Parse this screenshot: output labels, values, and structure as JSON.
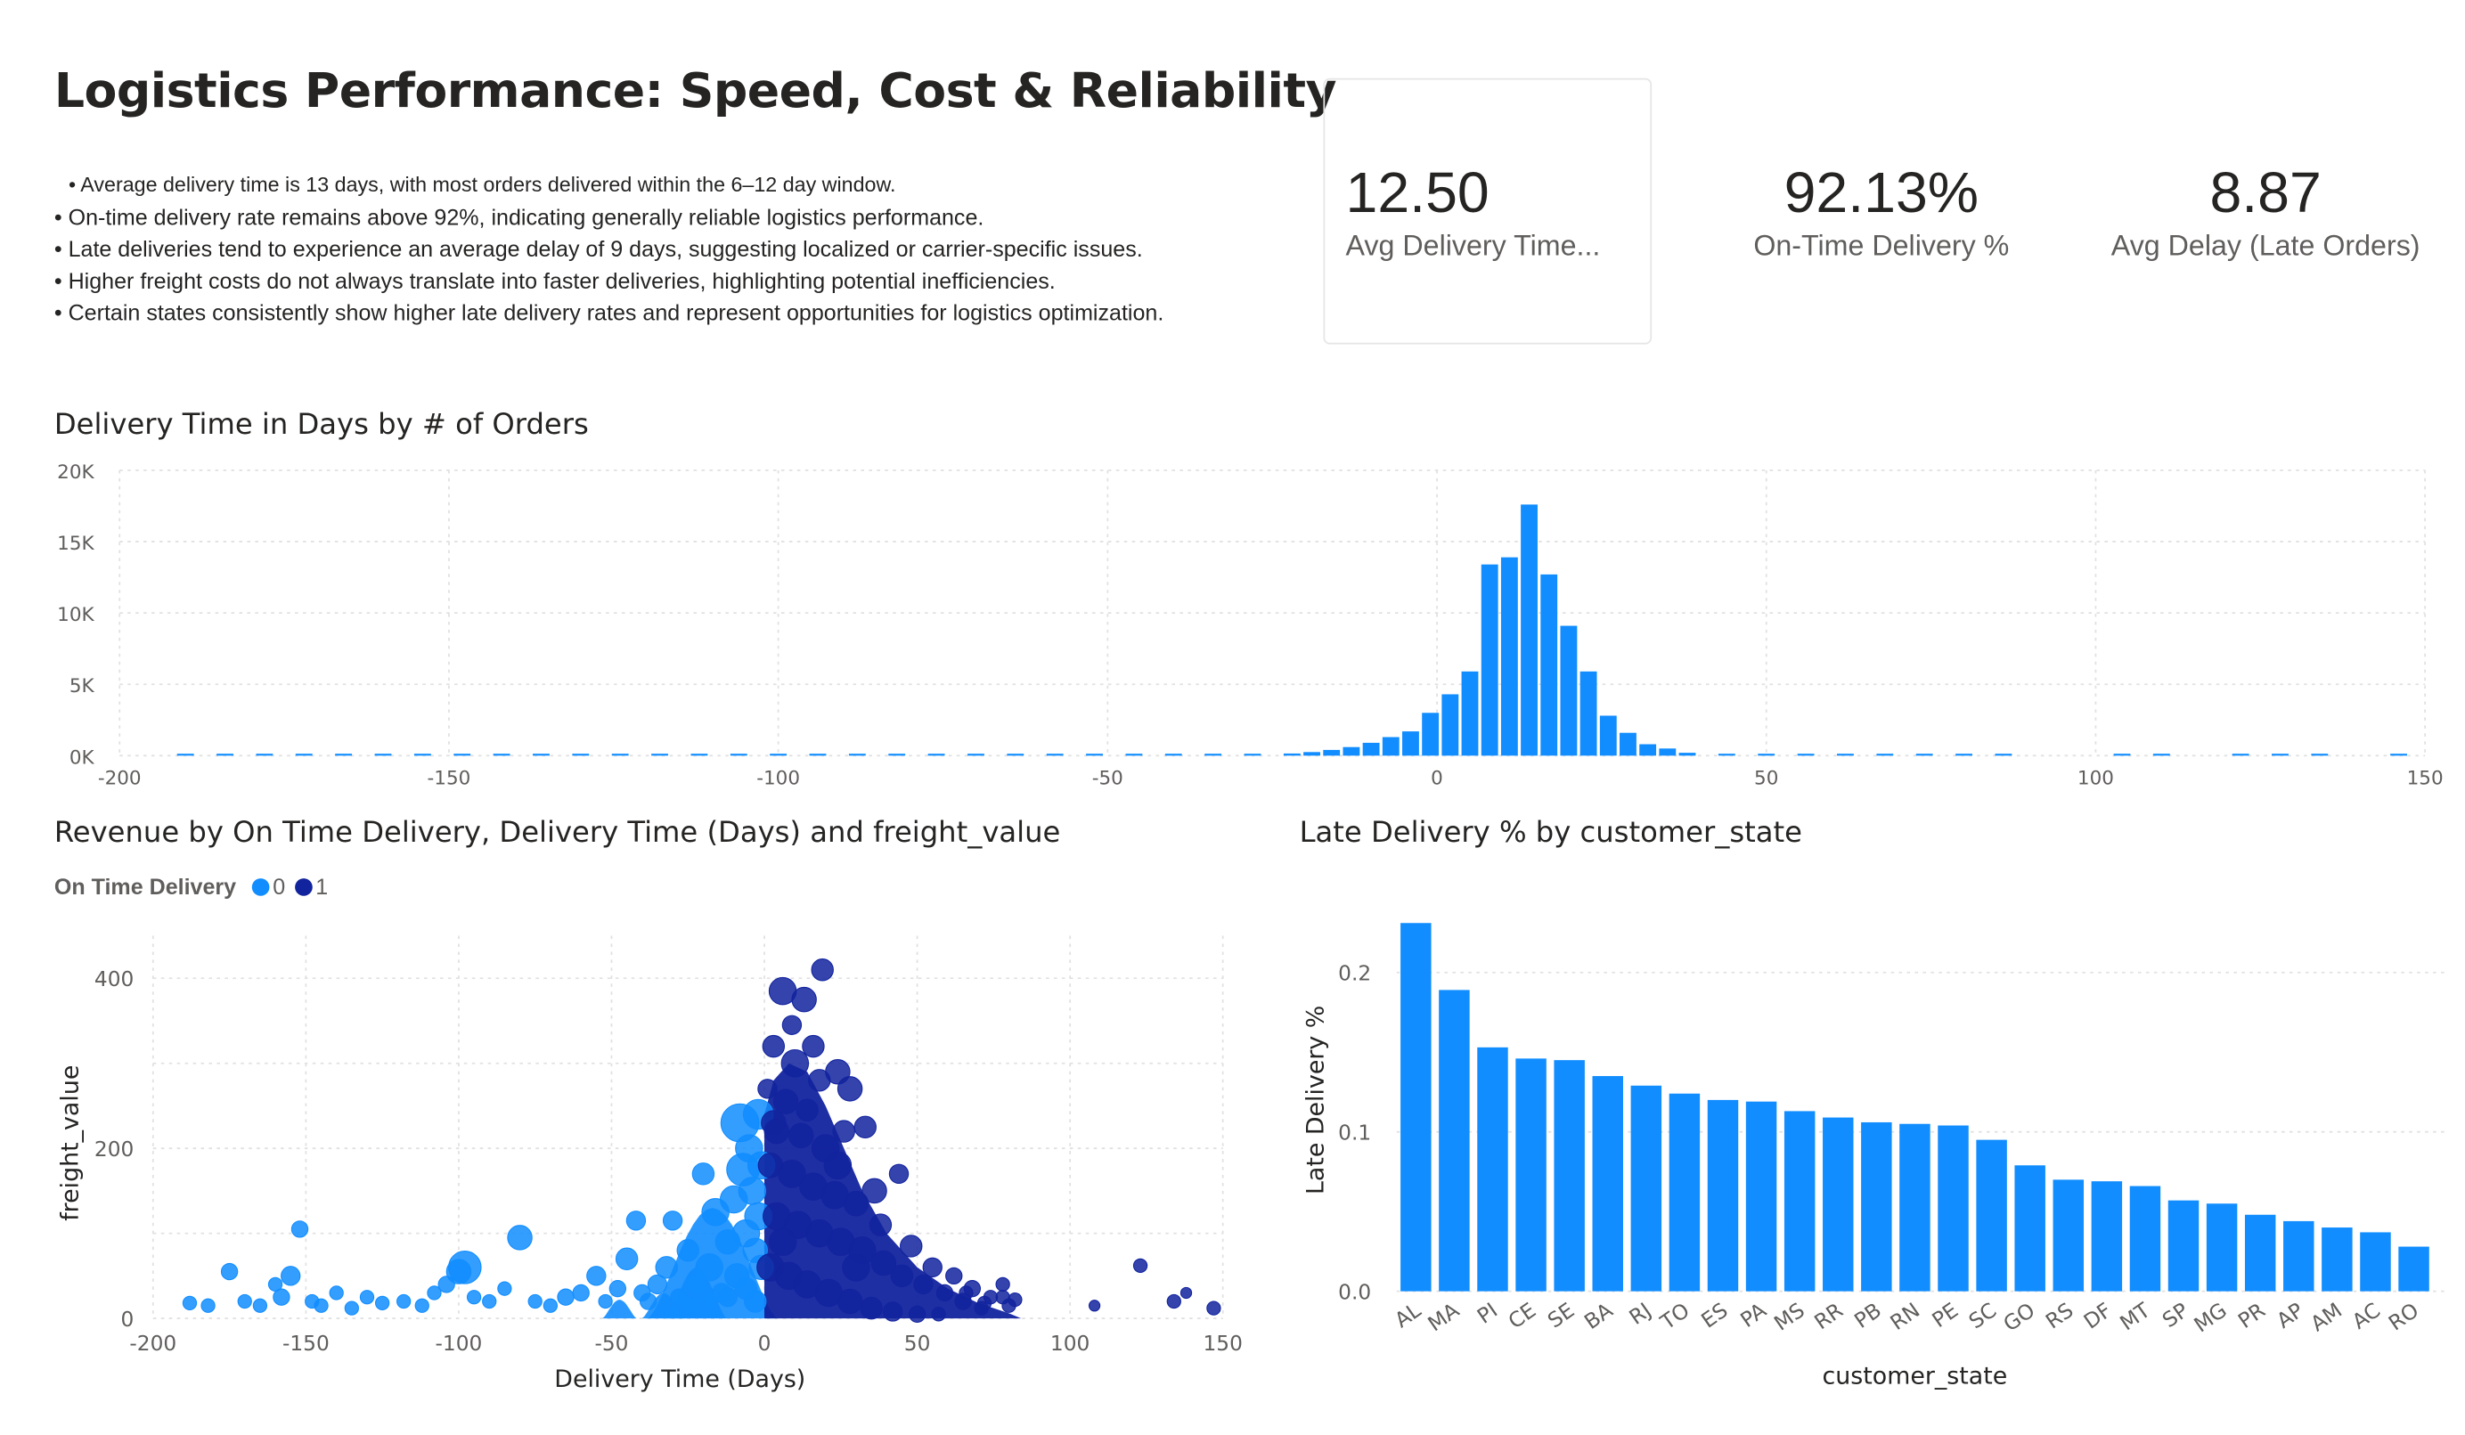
{
  "page": {
    "title": "Logistics Performance: Speed, Cost & Reliability",
    "bullets": [
      "• Average delivery time is 13 days, with most orders delivered within the 6–12 day window.",
      "• On-time delivery rate remains above 92%, indicating generally reliable logistics performance.",
      "• Late deliveries tend to experience an average delay of 9 days, suggesting localized or carrier-specific issues.",
      "• Higher freight costs do not always translate into faster deliveries, highlighting potential inefficiencies.",
      "• Certain states consistently show higher late delivery rates and represent opportunities for logistics optimization."
    ]
  },
  "kpis": [
    {
      "value": "12.50",
      "label": "Avg Delivery Time..."
    },
    {
      "value": "92.13%",
      "label": "On-Time Delivery %"
    },
    {
      "value": "8.87",
      "label": "Avg Delay (Late Orders)"
    }
  ],
  "colors": {
    "bar": "#118DFF",
    "on_time_0": "#118DFF",
    "on_time_1": "#12239E",
    "grid": "#e1e1e1",
    "axis_text": "#605e5c"
  },
  "chart_data": [
    {
      "type": "bar",
      "title": "Delivery Time in Days by # of Orders",
      "xlabel": "",
      "ylabel": "",
      "xlim": [
        -200,
        150
      ],
      "ylim": [
        0,
        20000
      ],
      "x_ticks": [
        "-200",
        "-150",
        "-100",
        "-50",
        "0",
        "50",
        "100",
        "150"
      ],
      "y_ticks": [
        "0K",
        "5K",
        "10K",
        "15K",
        "20K"
      ],
      "grid": true,
      "bins_x": [
        -190,
        -184,
        -178,
        -172,
        -166,
        -160,
        -154,
        -148,
        -142,
        -136,
        -130,
        -124,
        -118,
        -112,
        -106,
        -100,
        -94,
        -88,
        -82,
        -76,
        -70,
        -64,
        -58,
        -52,
        -46,
        -40,
        -34,
        -28,
        -22,
        -19,
        -16,
        -13,
        -10,
        -7,
        -4,
        -1,
        2,
        5,
        8,
        11,
        14,
        17,
        20,
        23,
        26,
        29,
        32,
        35,
        38,
        44,
        50,
        56,
        62,
        68,
        74,
        80,
        86,
        104,
        110,
        122,
        128,
        134,
        146
      ],
      "values": [
        60,
        70,
        40,
        50,
        60,
        60,
        50,
        60,
        60,
        40,
        60,
        60,
        40,
        60,
        50,
        60,
        60,
        50,
        60,
        40,
        60,
        50,
        40,
        60,
        60,
        60,
        60,
        80,
        150,
        250,
        400,
        600,
        900,
        1300,
        1700,
        3000,
        4300,
        5900,
        13400,
        13900,
        17600,
        12700,
        9100,
        5900,
        2800,
        1600,
        800,
        500,
        200,
        120,
        80,
        70,
        60,
        60,
        50,
        40,
        30,
        40,
        30,
        40,
        30,
        40,
        30
      ]
    },
    {
      "type": "scatter",
      "title": "Revenue by On Time Delivery, Delivery Time (Days) and freight_value",
      "xlabel": "Delivery Time (Days)",
      "ylabel": "freight_value",
      "xlim": [
        -200,
        150
      ],
      "ylim": [
        0,
        450
      ],
      "x_ticks": [
        "-200",
        "-150",
        "-100",
        "-50",
        "0",
        "50",
        "100",
        "150"
      ],
      "y_ticks": [
        "0",
        "200",
        "400"
      ],
      "grid": true,
      "legend": {
        "title": "On Time Delivery",
        "placement": "top-left"
      },
      "series": [
        {
          "name": "0",
          "points": [
            [
              -188,
              18,
              5
            ],
            [
              -182,
              15,
              5
            ],
            [
              -175,
              55,
              6
            ],
            [
              -170,
              20,
              5
            ],
            [
              -165,
              15,
              5
            ],
            [
              -160,
              40,
              5
            ],
            [
              -158,
              25,
              6
            ],
            [
              -155,
              50,
              7
            ],
            [
              -152,
              105,
              6
            ],
            [
              -148,
              20,
              5
            ],
            [
              -145,
              15,
              5
            ],
            [
              -140,
              30,
              5
            ],
            [
              -135,
              12,
              5
            ],
            [
              -130,
              25,
              5
            ],
            [
              -125,
              18,
              5
            ],
            [
              -118,
              20,
              5
            ],
            [
              -112,
              15,
              5
            ],
            [
              -108,
              30,
              5
            ],
            [
              -104,
              40,
              6
            ],
            [
              -100,
              55,
              9
            ],
            [
              -98,
              60,
              12
            ],
            [
              -95,
              25,
              5
            ],
            [
              -90,
              20,
              5
            ],
            [
              -85,
              35,
              5
            ],
            [
              -80,
              95,
              9
            ],
            [
              -75,
              20,
              5
            ],
            [
              -70,
              15,
              5
            ],
            [
              -65,
              25,
              6
            ],
            [
              -60,
              30,
              6
            ],
            [
              -55,
              50,
              7
            ],
            [
              -52,
              20,
              5
            ],
            [
              -48,
              35,
              6
            ],
            [
              -45,
              70,
              8
            ],
            [
              -42,
              115,
              7
            ],
            [
              -40,
              30,
              6
            ],
            [
              -38,
              20,
              6
            ],
            [
              -35,
              40,
              7
            ],
            [
              -32,
              60,
              8
            ],
            [
              -30,
              115,
              7
            ],
            [
              -28,
              25,
              6
            ],
            [
              -25,
              80,
              8
            ],
            [
              -22,
              40,
              7
            ],
            [
              -20,
              170,
              8
            ],
            [
              -18,
              60,
              10
            ],
            [
              -16,
              125,
              10
            ],
            [
              -14,
              30,
              7
            ],
            [
              -12,
              90,
              9
            ],
            [
              -10,
              140,
              10
            ],
            [
              -9,
              50,
              9
            ],
            [
              -8,
              230,
              14
            ],
            [
              -7,
              175,
              12
            ],
            [
              -6,
              100,
              10
            ],
            [
              -5,
              200,
              10
            ],
            [
              -4,
              150,
              10
            ],
            [
              -3,
              80,
              9
            ],
            [
              -2,
              240,
              11
            ],
            [
              -2,
              120,
              10
            ],
            [
              -1,
              60,
              9
            ],
            [
              -1,
              180,
              10
            ],
            [
              -6,
              35,
              8
            ],
            [
              -12,
              25,
              7
            ],
            [
              -18,
              20,
              6
            ],
            [
              -24,
              15,
              6
            ],
            [
              -3,
              20,
              8
            ]
          ]
        },
        {
          "name": "1",
          "points": [
            [
              19,
              410,
              8
            ],
            [
              6,
              385,
              10
            ],
            [
              13,
              375,
              9
            ],
            [
              9,
              345,
              7
            ],
            [
              16,
              320,
              8
            ],
            [
              3,
              320,
              8
            ],
            [
              24,
              290,
              9
            ],
            [
              10,
              300,
              10
            ],
            [
              1,
              270,
              7
            ],
            [
              18,
              280,
              8
            ],
            [
              7,
              255,
              9
            ],
            [
              14,
              245,
              8
            ],
            [
              28,
              270,
              9
            ],
            [
              4,
              220,
              9
            ],
            [
              12,
              215,
              9
            ],
            [
              20,
              200,
              10
            ],
            [
              26,
              220,
              8
            ],
            [
              33,
              225,
              8
            ],
            [
              44,
              170,
              7
            ],
            [
              2,
              180,
              9
            ],
            [
              9,
              170,
              10
            ],
            [
              16,
              155,
              10
            ],
            [
              23,
              145,
              10
            ],
            [
              30,
              135,
              9
            ],
            [
              38,
              110,
              8
            ],
            [
              48,
              85,
              8
            ],
            [
              55,
              60,
              7
            ],
            [
              62,
              50,
              6
            ],
            [
              68,
              35,
              6
            ],
            [
              74,
              25,
              5
            ],
            [
              78,
              40,
              5
            ],
            [
              80,
              15,
              5
            ],
            [
              4,
              120,
              10
            ],
            [
              11,
              110,
              10
            ],
            [
              18,
              100,
              10
            ],
            [
              25,
              90,
              10
            ],
            [
              32,
              80,
              10
            ],
            [
              39,
              65,
              9
            ],
            [
              45,
              50,
              8
            ],
            [
              52,
              40,
              7
            ],
            [
              59,
              30,
              6
            ],
            [
              65,
              20,
              6
            ],
            [
              71,
              12,
              5
            ],
            [
              2,
              60,
              10
            ],
            [
              8,
              50,
              10
            ],
            [
              14,
              40,
              10
            ],
            [
              21,
              30,
              10
            ],
            [
              28,
              20,
              9
            ],
            [
              35,
              12,
              8
            ],
            [
              42,
              8,
              7
            ],
            [
              50,
              5,
              6
            ],
            [
              57,
              5,
              5
            ],
            [
              66,
              30,
              5
            ],
            [
              72,
              18,
              5
            ],
            [
              78,
              25,
              5
            ],
            [
              82,
              22,
              5
            ],
            [
              108,
              15,
              4
            ],
            [
              123,
              62,
              5
            ],
            [
              134,
              20,
              5
            ],
            [
              138,
              30,
              4
            ],
            [
              147,
              12,
              5
            ],
            [
              3,
              230,
              9
            ],
            [
              24,
              180,
              10
            ],
            [
              36,
              150,
              9
            ],
            [
              6,
              90,
              10
            ],
            [
              30,
              60,
              10
            ]
          ]
        }
      ]
    },
    {
      "type": "bar",
      "title": "Late Delivery % by customer_state",
      "xlabel": "customer_state",
      "ylabel": "Late Delivery %",
      "ylim": [
        0,
        0.24
      ],
      "y_ticks": [
        "0.0",
        "0.1",
        "0.2"
      ],
      "grid": true,
      "categories": [
        "AL",
        "MA",
        "PI",
        "CE",
        "SE",
        "BA",
        "RJ",
        "TO",
        "ES",
        "PA",
        "MS",
        "RR",
        "PB",
        "RN",
        "PE",
        "SC",
        "GO",
        "RS",
        "DF",
        "MT",
        "SP",
        "MG",
        "PR",
        "AP",
        "AM",
        "AC",
        "RO"
      ],
      "values": [
        0.231,
        0.189,
        0.153,
        0.146,
        0.145,
        0.135,
        0.129,
        0.124,
        0.12,
        0.119,
        0.113,
        0.109,
        0.106,
        0.105,
        0.104,
        0.095,
        0.079,
        0.07,
        0.069,
        0.066,
        0.057,
        0.055,
        0.048,
        0.044,
        0.04,
        0.037,
        0.028
      ]
    }
  ]
}
